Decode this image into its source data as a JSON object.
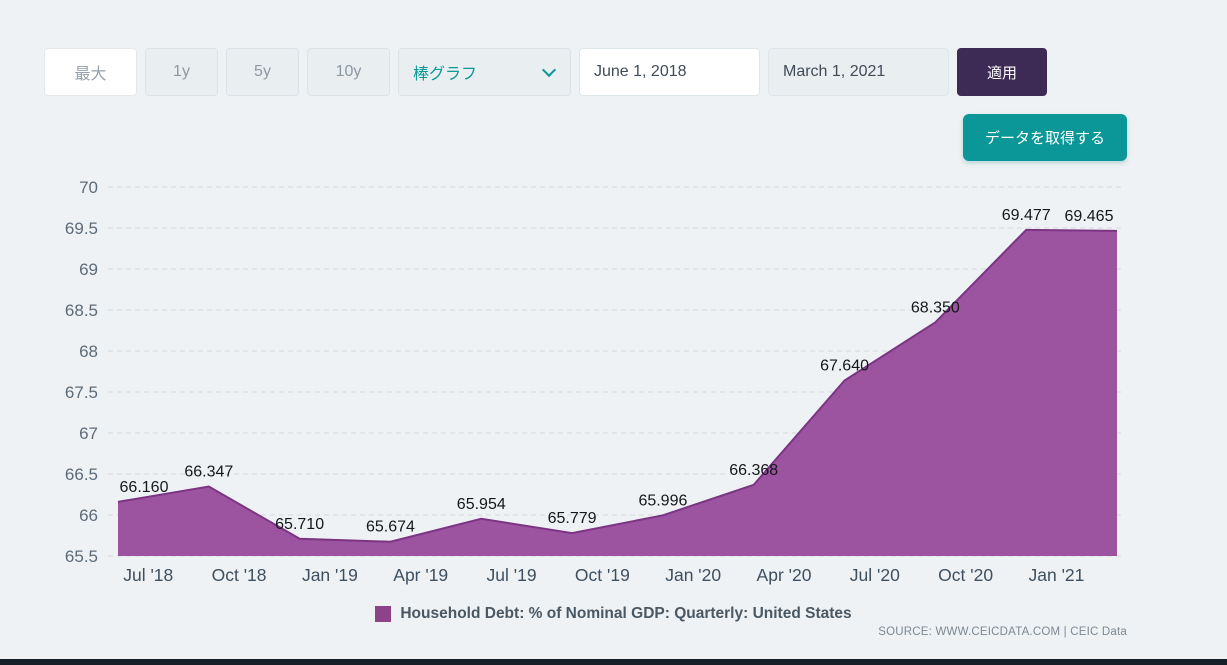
{
  "toolbar": {
    "range_buttons": [
      {
        "label": "最大"
      },
      {
        "label": "1y"
      },
      {
        "label": "5y"
      },
      {
        "label": "10y"
      }
    ],
    "chart_type_select": {
      "value": "棒グラフ"
    },
    "start_date_value": "June 1, 2018",
    "end_date_value": "March 1, 2021",
    "apply_button_label": "適用",
    "get_data_button_label": "データを取得する",
    "accent_purple": "#3d2a55",
    "accent_teal": "#0b9798"
  },
  "chart_data": {
    "type": "area",
    "title": "",
    "series": [
      {
        "name": "Household Debt: % of Nominal GDP: Quarterly: United States",
        "values": [
          66.16,
          66.347,
          65.71,
          65.674,
          65.954,
          65.779,
          65.996,
          66.368,
          67.64,
          68.35,
          69.477,
          69.465
        ]
      }
    ],
    "point_labels": [
      "66.160",
      "66.347",
      "65.710",
      "65.674",
      "65.954",
      "65.779",
      "65.996",
      "66.368",
      "67.640",
      "68.350",
      "69.477",
      "69.465"
    ],
    "x_tick_labels": [
      "Jul '18",
      "Oct '18",
      "Jan '19",
      "Apr '19",
      "Jul '19",
      "Oct '19",
      "Jan '20",
      "Apr '20",
      "Jul '20",
      "Oct '20",
      "Jan '21"
    ],
    "y_ticks": [
      65.5,
      66,
      66.5,
      67,
      67.5,
      68,
      68.5,
      69,
      69.5,
      70
    ],
    "ylim": [
      65.5,
      70
    ],
    "grid": "horizontal dashed",
    "legend_position": "bottom center",
    "area_fill_color": "#9c54a0",
    "area_stroke_color": "#7c3583",
    "legend": {
      "swatch_color": "#8e4389",
      "label": "Household Debt: % of Nominal GDP: Quarterly: United States"
    },
    "source_text": "SOURCE: WWW.CEICDATA.COM | CEIC Data"
  }
}
